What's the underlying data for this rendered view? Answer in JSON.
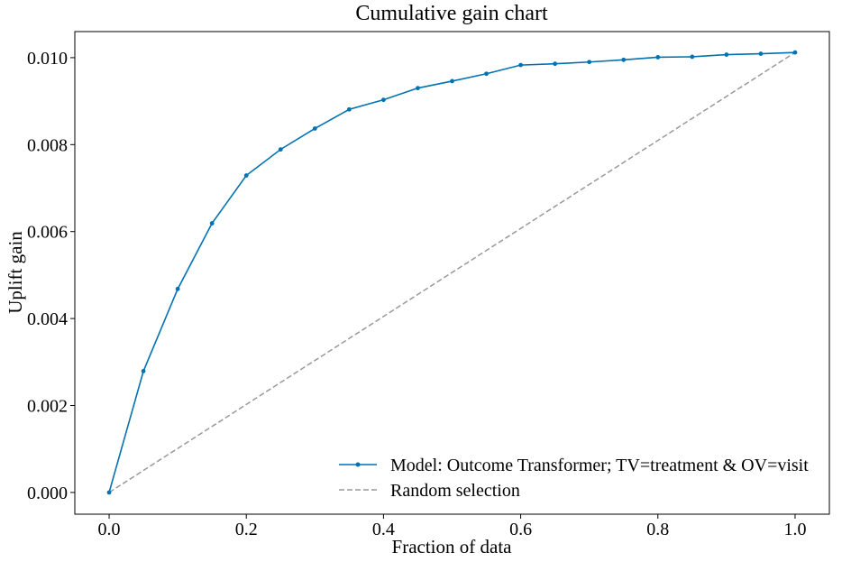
{
  "chart_data": {
    "type": "line",
    "title": "Cumulative gain chart",
    "xlabel": "Fraction of data",
    "ylabel": "Uplift gain",
    "xlim": [
      -0.05,
      1.05
    ],
    "ylim": [
      -0.0005,
      0.0106
    ],
    "xticks": [
      "0.0",
      "0.2",
      "0.4",
      "0.6",
      "0.8",
      "1.0"
    ],
    "yticks": [
      "0.000",
      "0.002",
      "0.004",
      "0.006",
      "0.008",
      "0.010"
    ],
    "legend_position": "lower-right",
    "grid": false,
    "series": [
      {
        "name": "Model: Outcome Transformer; TV=treatment & OV=visit",
        "color": "#0072B2",
        "style": "solid-with-markers",
        "x": [
          0.0,
          0.05,
          0.1,
          0.15,
          0.2,
          0.25,
          0.3,
          0.35,
          0.4,
          0.45,
          0.5,
          0.55,
          0.6,
          0.65,
          0.7,
          0.75,
          0.8,
          0.85,
          0.9,
          0.95,
          1.0
        ],
        "y": [
          0.0,
          0.00279,
          0.00468,
          0.00619,
          0.00729,
          0.00789,
          0.00837,
          0.00881,
          0.00903,
          0.0093,
          0.00946,
          0.00963,
          0.00983,
          0.00986,
          0.0099,
          0.00995,
          0.01001,
          0.01002,
          0.01007,
          0.01009,
          0.01012
        ]
      },
      {
        "name": "Random selection",
        "color": "#999999",
        "style": "dashed",
        "x": [
          0.0,
          1.0
        ],
        "y": [
          0.0,
          0.01012
        ]
      }
    ]
  }
}
